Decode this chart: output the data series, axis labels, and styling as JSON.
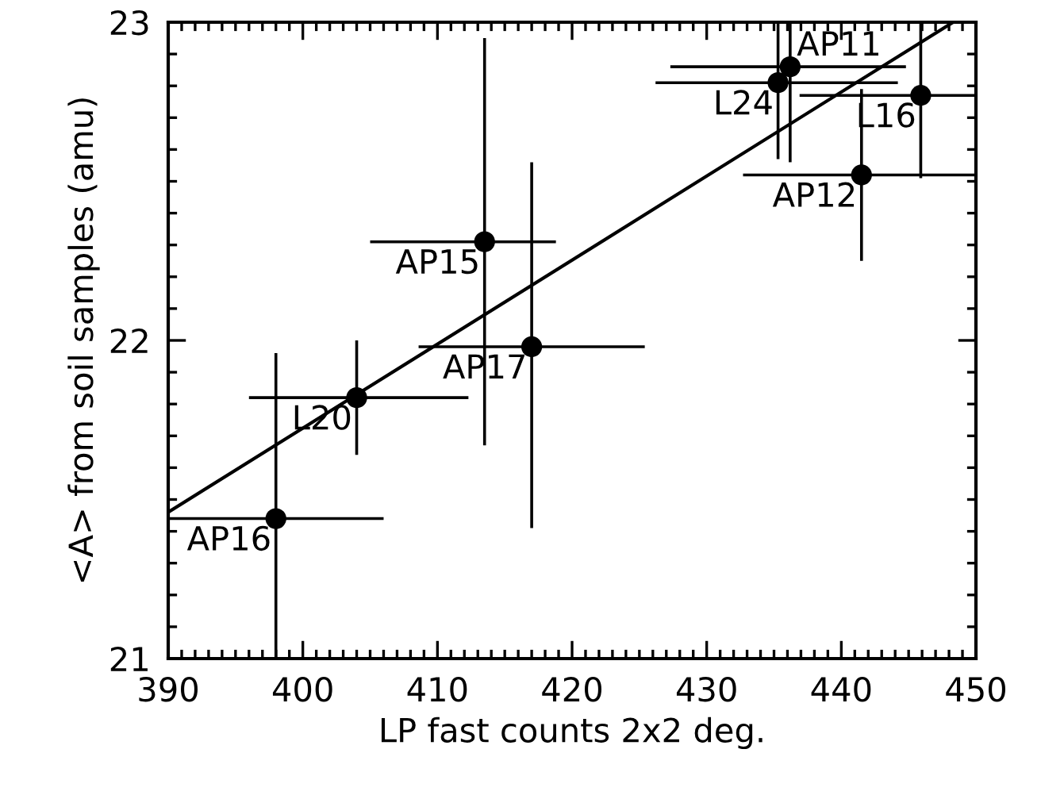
{
  "chart_data": {
    "type": "scatter",
    "xlabel": "LP fast counts 2x2 deg.",
    "ylabel": "<A> from soil samples (amu)",
    "xlim": [
      390,
      450
    ],
    "xticks": [
      390,
      400,
      410,
      420,
      430,
      440,
      450
    ],
    "ylim": [
      21,
      23
    ],
    "yticks": [
      21,
      22,
      23
    ],
    "grid": false,
    "legend": false,
    "series": [
      {
        "marker": "circle",
        "color": "#000000",
        "x": [
          398.0,
          404.0,
          417.0,
          413.5,
          436.2,
          435.3,
          445.9,
          441.5
        ],
        "values": [
          21.44,
          21.82,
          21.98,
          22.31,
          22.86,
          22.81,
          22.77,
          22.52
        ],
        "xerrors": [
          [
            390,
            406.0
          ],
          [
            396.0,
            412.3
          ],
          [
            408.6,
            425.4
          ],
          [
            405.0,
            418.8
          ],
          [
            427.3,
            444.8
          ],
          [
            426.2,
            444.2
          ],
          [
            436.9,
            450
          ],
          [
            432.7,
            450
          ]
        ],
        "errors": [
          [
            21,
            21.96
          ],
          [
            21.64,
            22.0
          ],
          [
            21.41,
            22.56
          ],
          [
            21.67,
            22.95
          ],
          [
            22.56,
            23
          ],
          [
            22.57,
            23
          ],
          [
            22.51,
            23
          ],
          [
            22.25,
            22.79
          ]
        ]
      },
      {
        "type": "line",
        "color": "#000000",
        "x": [
          390,
          448.3
        ],
        "values": [
          21.46,
          23.0
        ]
      }
    ],
    "annotations": [
      {
        "text": "AP16",
        "x": 398.0,
        "y": 21.44
      },
      {
        "text": "L20",
        "x": 404.0,
        "y": 21.82
      },
      {
        "text": "AP17",
        "x": 417.0,
        "y": 21.98
      },
      {
        "text": "AP15",
        "x": 413.5,
        "y": 22.31
      },
      {
        "text": "AP11",
        "x": 436.2,
        "y": 22.86
      },
      {
        "text": "L24",
        "x": 435.3,
        "y": 22.81
      },
      {
        "text": "L16",
        "x": 445.9,
        "y": 22.77
      },
      {
        "text": "AP12",
        "x": 441.5,
        "y": 22.52
      }
    ]
  }
}
